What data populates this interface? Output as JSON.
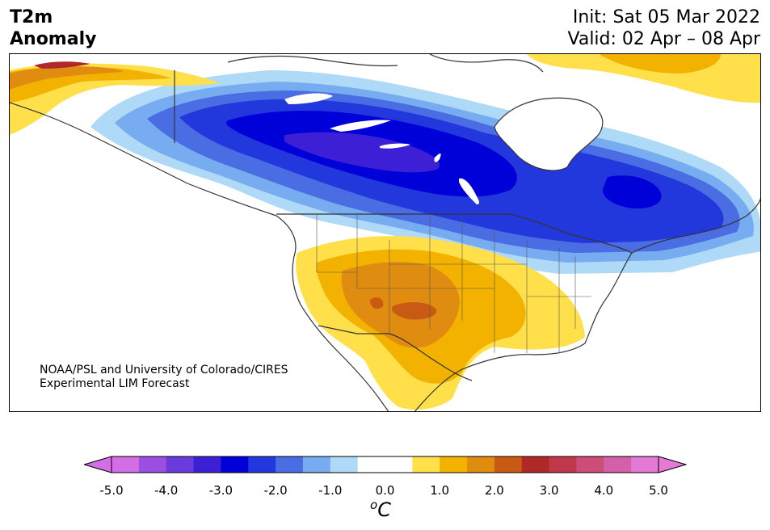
{
  "header": {
    "title_line1": "T2m",
    "title_line2": "Anomaly",
    "init": "Init: Sat 05 Mar 2022",
    "valid": "Valid: 02 Apr – 08 Apr"
  },
  "credit": {
    "line1": "NOAA/PSL and University of Colorado/CIRES",
    "line2": "Experimental LIM Forecast"
  },
  "colorbar": {
    "unit_sup": "o",
    "unit": "C",
    "ticks": [
      "-5.0",
      "-4.0",
      "-3.0",
      "-2.0",
      "-1.0",
      "0.0",
      "1.0",
      "2.0",
      "3.0",
      "4.0",
      "5.0"
    ],
    "colors": [
      "#d36ee6",
      "#9b4fe0",
      "#6a3bdc",
      "#3d1fd6",
      "#0000d8",
      "#2338dc",
      "#4a6de4",
      "#78acf0",
      "#aedaf8",
      "#ffffff",
      "#ffffff",
      "#ffe04a",
      "#f3b200",
      "#e08c10",
      "#c85a14",
      "#b02828",
      "#c0384c",
      "#cc4d78",
      "#d460a8",
      "#e57ad6"
    ],
    "under_color": "#d36ee6",
    "over_color": "#e57ad6"
  },
  "map": {
    "region": "North America",
    "colors": {
      "c_lt1": "#aedaf8",
      "c_lt2": "#78acf0",
      "c_lt3": "#4a6de4",
      "c_mid": "#2338dc",
      "c_dk": "#0000d8",
      "c_vdk": "#3d1fd6",
      "w_1": "#ffe04a",
      "w_2": "#f3b200",
      "w_3": "#e08c10",
      "w_4": "#c85a14",
      "w_5": "#b02828",
      "land_outline": "#333333"
    }
  }
}
